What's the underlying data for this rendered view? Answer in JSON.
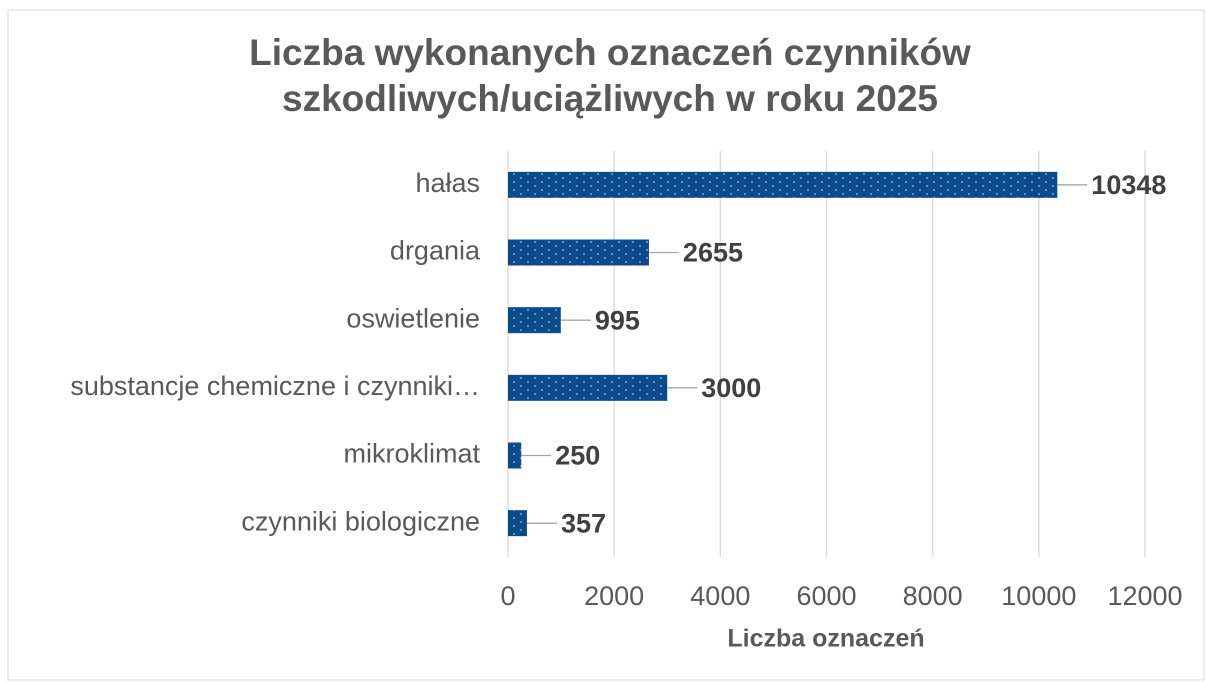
{
  "chart_data": {
    "type": "barh",
    "title": "Liczba wykonanych oznaczeń czynników szkodliwych/uciążliwych w roku 2025",
    "x_label": "Liczba oznaczeń",
    "categories": [
      "hałas",
      "drgania",
      "oswietlenie",
      "substancje chemiczne i czynniki…",
      "mikroklimat",
      "czynniki biologiczne"
    ],
    "values": [
      10348,
      2655,
      995,
      3000,
      250,
      357
    ],
    "color": "#0b4a8b",
    "xlim": [
      0,
      12000
    ],
    "xticks": [
      0,
      2000,
      4000,
      6000,
      8000,
      10000,
      12000
    ],
    "grid": true
  }
}
